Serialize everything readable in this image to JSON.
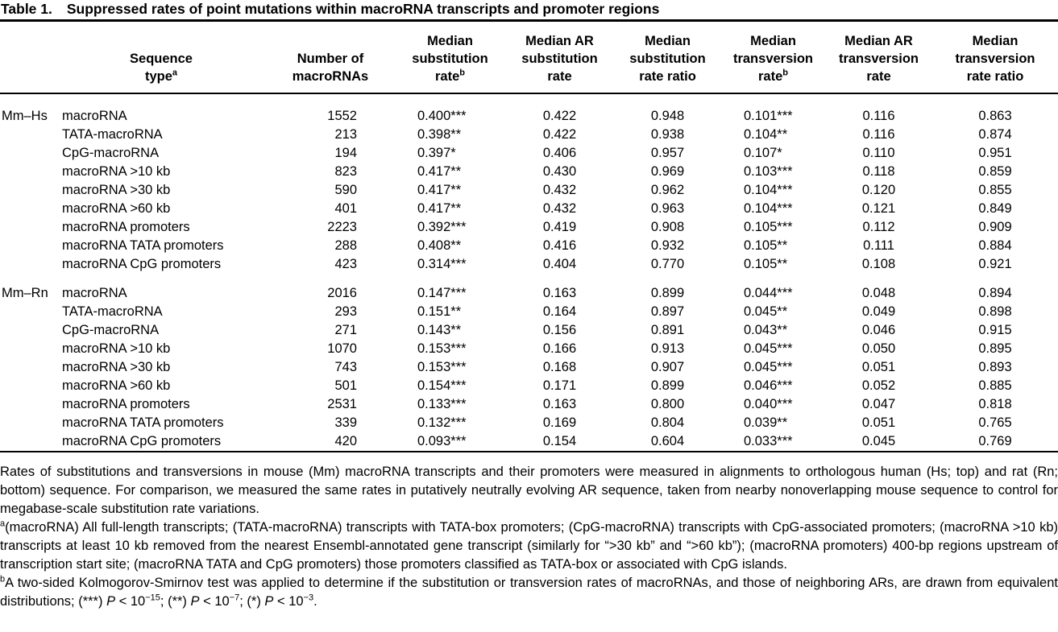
{
  "title": {
    "label": "Table 1.",
    "text": "Suppressed rates of point mutations within macroRNA transcripts and promoter regions"
  },
  "table": {
    "headers": [
      {
        "lines": [
          "Sequence",
          "type"
        ],
        "sup": "a"
      },
      {
        "lines": [
          "Number of",
          "macroRNAs"
        ]
      },
      {
        "lines": [
          "Median",
          "substitution",
          "rate"
        ],
        "sup": "b"
      },
      {
        "lines": [
          "Median AR",
          "substitution",
          "rate"
        ]
      },
      {
        "lines": [
          "Median",
          "substitution",
          "rate ratio"
        ]
      },
      {
        "lines": [
          "Median",
          "transversion",
          "rate"
        ],
        "sup": "b"
      },
      {
        "lines": [
          "Median AR",
          "transversion",
          "rate"
        ]
      },
      {
        "lines": [
          "Median",
          "transversion",
          "rate ratio"
        ]
      }
    ],
    "groups": [
      {
        "name": "Mm–Hs",
        "rows": [
          {
            "sequence_type": "macroRNA",
            "values": [
              "1552",
              "0.400***",
              "0.422",
              "0.948",
              "0.101***",
              "0.116",
              "0.863"
            ]
          },
          {
            "sequence_type": "TATA-macroRNA",
            "values": [
              "213",
              "0.398**",
              "0.422",
              "0.938",
              "0.104**",
              "0.116",
              "0.874"
            ]
          },
          {
            "sequence_type": "CpG-macroRNA",
            "values": [
              "194",
              "0.397*",
              "0.406",
              "0.957",
              "0.107*",
              "0.110",
              "0.951"
            ]
          },
          {
            "sequence_type": "macroRNA >10 kb",
            "values": [
              "823",
              "0.417**",
              "0.430",
              "0.969",
              "0.103***",
              "0.118",
              "0.859"
            ]
          },
          {
            "sequence_type": "macroRNA >30 kb",
            "values": [
              "590",
              "0.417**",
              "0.432",
              "0.962",
              "0.104***",
              "0.120",
              "0.855"
            ]
          },
          {
            "sequence_type": "macroRNA >60 kb",
            "values": [
              "401",
              "0.417**",
              "0.432",
              "0.963",
              "0.104***",
              "0.121",
              "0.849"
            ]
          },
          {
            "sequence_type": "macroRNA promoters",
            "values": [
              "2223",
              "0.392***",
              "0.419",
              "0.908",
              "0.105***",
              "0.112",
              "0.909"
            ]
          },
          {
            "sequence_type": "macroRNA TATA promoters",
            "values": [
              "288",
              "0.408**",
              "0.416",
              "0.932",
              "0.105**",
              "0.111",
              "0.884"
            ]
          },
          {
            "sequence_type": "macroRNA CpG promoters",
            "values": [
              "423",
              "0.314***",
              "0.404",
              "0.770",
              "0.105**",
              "0.108",
              "0.921"
            ]
          }
        ]
      },
      {
        "name": "Mm–Rn",
        "rows": [
          {
            "sequence_type": "macroRNA",
            "values": [
              "2016",
              "0.147***",
              "0.163",
              "0.899",
              "0.044***",
              "0.048",
              "0.894"
            ]
          },
          {
            "sequence_type": "TATA-macroRNA",
            "values": [
              "293",
              "0.151**",
              "0.164",
              "0.897",
              "0.045**",
              "0.049",
              "0.898"
            ]
          },
          {
            "sequence_type": "CpG-macroRNA",
            "values": [
              "271",
              "0.143**",
              "0.156",
              "0.891",
              "0.043**",
              "0.046",
              "0.915"
            ]
          },
          {
            "sequence_type": "macroRNA >10 kb",
            "values": [
              "1070",
              "0.153***",
              "0.166",
              "0.913",
              "0.045***",
              "0.050",
              "0.895"
            ]
          },
          {
            "sequence_type": "macroRNA >30 kb",
            "values": [
              "743",
              "0.153***",
              "0.168",
              "0.907",
              "0.045***",
              "0.051",
              "0.893"
            ]
          },
          {
            "sequence_type": "macroRNA >60 kb",
            "values": [
              "501",
              "0.154***",
              "0.171",
              "0.899",
              "0.046***",
              "0.052",
              "0.885"
            ]
          },
          {
            "sequence_type": "macroRNA promoters",
            "values": [
              "2531",
              "0.133***",
              "0.163",
              "0.800",
              "0.040***",
              "0.047",
              "0.818"
            ]
          },
          {
            "sequence_type": "macroRNA TATA promoters",
            "values": [
              "339",
              "0.132***",
              "0.169",
              "0.804",
              "0.039**",
              "0.051",
              "0.765"
            ]
          },
          {
            "sequence_type": "macroRNA CpG promoters",
            "values": [
              "420",
              "0.093***",
              "0.154",
              "0.604",
              "0.033***",
              "0.045",
              "0.769"
            ]
          }
        ]
      }
    ]
  },
  "footnotes": {
    "general": "Rates of substitutions and transversions in mouse (Mm) macroRNA transcripts and their promoters were measured in alignments to orthologous human (Hs; top) and rat (Rn; bottom) sequence. For comparison, we measured the same rates in putatively neutrally evolving AR sequence, taken from nearby nonoverlapping mouse sequence to control for megabase-scale substitution rate variations.",
    "a_marker": "a",
    "a_text": "(macroRNA) All full-length transcripts; (TATA-macroRNA) transcripts with TATA-box promoters; (CpG-macroRNA) transcripts with CpG-associated promoters; (macroRNA >10 kb) transcripts at least 10 kb removed from the nearest Ensembl-annotated gene transcript (similarly for “>30 kb” and “>60 kb”); (macroRNA promoters) 400-bp regions upstream of transcription start site; (macroRNA TATA and CpG promoters) those promoters classified as TATA-box or associated with CpG islands.",
    "b_marker": "b",
    "b_text": "A two-sided Kolmogorov-Smirnov test was applied to determine if the substitution or transversion rates of macroRNAs, and those of neighboring ARs, are drawn from equivalent distributions; ",
    "b_stats": [
      {
        "stars": "(***) ",
        "p": "P",
        "lt": " < 10",
        "exp": "−15",
        "sep": "; "
      },
      {
        "stars": "(**) ",
        "p": "P",
        "lt": " < 10",
        "exp": "−7",
        "sep": "; "
      },
      {
        "stars": "(*) ",
        "p": "P",
        "lt": " < 10",
        "exp": "−3",
        "sep": "."
      }
    ]
  }
}
